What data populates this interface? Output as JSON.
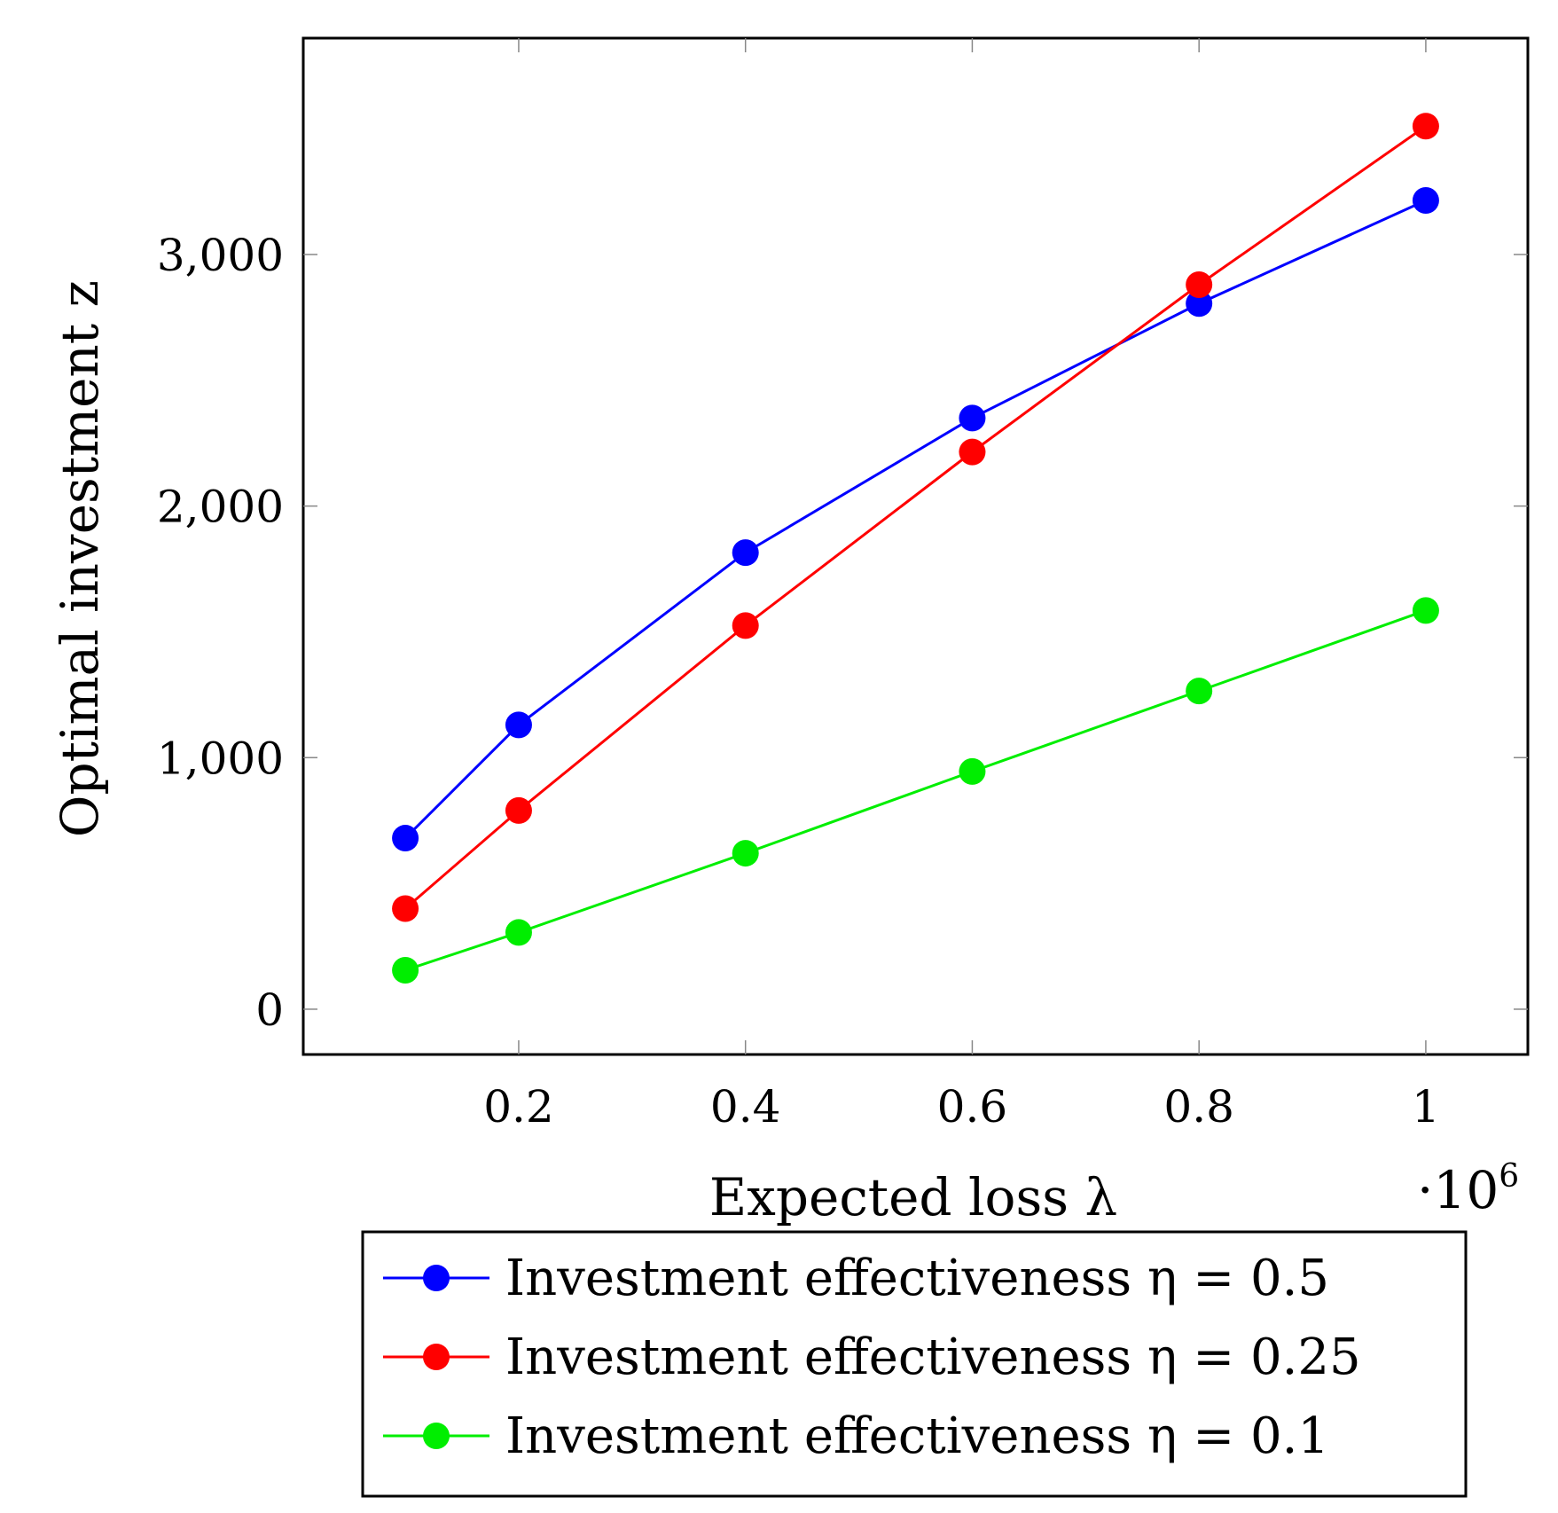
{
  "chart_data": {
    "type": "line",
    "title": "",
    "xlabel": "Expected loss λ",
    "ylabel": "Optimal investment z",
    "x_scale_note": "·10",
    "x_scale_exponent": "6",
    "x": [
      0.1,
      0.2,
      0.4,
      0.6,
      0.8,
      1.0
    ],
    "xlim": [
      0.01,
      1.09
    ],
    "ylim": [
      -180,
      3860
    ],
    "xticks": [
      0.2,
      0.4,
      0.6,
      0.8,
      1.0
    ],
    "xtick_labels": [
      "0.2",
      "0.4",
      "0.6",
      "0.8",
      "1"
    ],
    "yticks": [
      0,
      1000,
      2000,
      3000
    ],
    "ytick_labels": [
      "0",
      "1,000",
      "2,000",
      "3,000"
    ],
    "grid": false,
    "legend_position": "below",
    "series": [
      {
        "name": "Investment effectiveness η = 0.5",
        "color": "#0000ff",
        "values": [
          680,
          1130,
          1815,
          2350,
          2805,
          3215
        ]
      },
      {
        "name": "Investment effectiveness η = 0.25",
        "color": "#ff0000",
        "values": [
          400,
          790,
          1525,
          2215,
          2880,
          3510
        ]
      },
      {
        "name": "Investment effectiveness η = 0.1",
        "color": "#00ee00",
        "values": [
          155,
          305,
          620,
          945,
          1265,
          1585
        ]
      }
    ]
  }
}
